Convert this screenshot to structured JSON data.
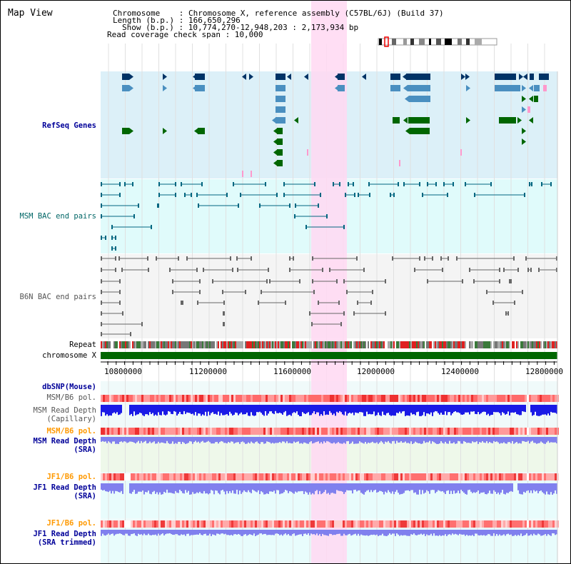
{
  "title": "Map View",
  "header": {
    "chromosome_label": "Chromosome    : Chromosome X, reference assembly (C57BL/6J) (Build 37)",
    "length_label": "Length (b.p.) : 166,650,296",
    "show_label": "Show (b.p.) : 10,774,270-12,948,203 : 2,173,934 bp",
    "coverage_label": "Read coverage check span : 10,000"
  },
  "tracks": {
    "refseq": "RefSeq Genes",
    "msm_bac": "MSM BAC end pairs",
    "b6n_bac": "B6N BAC end pairs",
    "repeat": "Repeat",
    "chromosome": "chromosome X",
    "dbsnp": "dbSNP(Mouse)",
    "msm_b6_pol_1": "MSM/B6 pol.",
    "msm_depth_cap_1": "MSM Read Depth",
    "msm_depth_cap_2": "(Capillary)",
    "msm_b6_pol_2": "MSM/B6 pol.",
    "msm_depth_sra_1": "MSM Read Depth",
    "msm_depth_sra_2": "(SRA)",
    "jf1_b6_pol_1": "JF1/B6 pol.",
    "jf1_depth_sra_1": "JF1 Read Depth",
    "jf1_depth_sra_2": "(SRA)",
    "jf1_b6_pol_2": "JF1/B6 pol.",
    "jf1_depth_trim_1": "JF1 Read Depth",
    "jf1_depth_trim_2": "(SRA trimmed)"
  },
  "axis": {
    "ticks": [
      "10800000",
      "11200000",
      "11600000",
      "12000000",
      "12400000",
      "12800000"
    ]
  },
  "colors": {
    "label_blue": "#000099",
    "label_orange": "#ff9900",
    "refseq_bg": "#dcf0f8",
    "msm_bg": "#e0fbfb",
    "b6n_bg": "#f4f4f4",
    "highlight": "#ffd8f2",
    "gene_dark": "#003366",
    "gene_light": "#4a8fc0",
    "gene_green": "#006600",
    "chrom_green": "#006600",
    "depth_blue": "#1a1ae6",
    "depth_lavender": "#8080ee"
  }
}
